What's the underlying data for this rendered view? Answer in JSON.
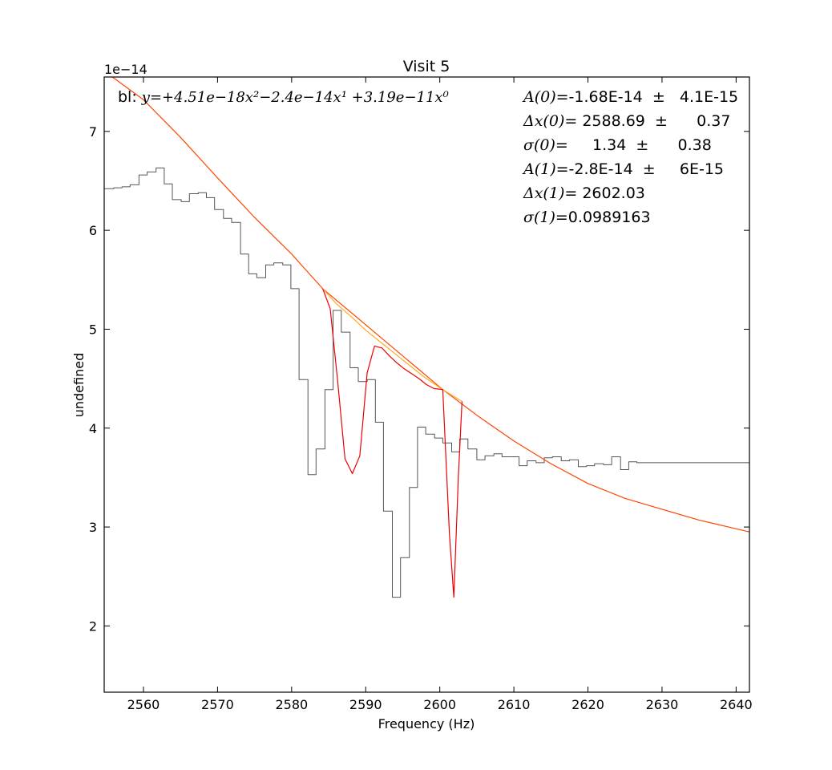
{
  "chart_data": {
    "type": "line",
    "title": "Visit 5",
    "xlabel": "Frequency (Hz)",
    "ylabel": "undefined",
    "y_offset_label": "1e−14",
    "xlim": [
      2554.7,
      2641.8
    ],
    "ylim": [
      1.33,
      7.55
    ],
    "x_ticks": [
      2560,
      2570,
      2580,
      2590,
      2600,
      2610,
      2620,
      2630,
      2640
    ],
    "x_tick_labels": [
      "2560",
      "2570",
      "2580",
      "2590",
      "2600",
      "2610",
      "2620",
      "2630",
      "2640"
    ],
    "y_ticks": [
      2,
      3,
      4,
      5,
      6,
      7
    ],
    "y_tick_labels": [
      "2",
      "3",
      "4",
      "5",
      "6",
      "7"
    ],
    "grid": false,
    "legend": "none",
    "baseline_text": {
      "prefix": "bl: ",
      "formula": "y=+4.51e−18x²−2.4e−14x¹ +3.19e−11x⁰"
    },
    "fit_params": [
      {
        "label": "A(0)",
        "text": "=-1.68E-14  ±   4.1E-15"
      },
      {
        "label": "Δx(0)",
        "text": "= 2588.69  ±      0.37"
      },
      {
        "label": "σ(0)",
        "text": "=     1.34  ±      0.38"
      },
      {
        "label": "A(1)",
        "text": "=-2.8E-14  ±     6E-15"
      },
      {
        "label": "Δx(1)",
        "text": "= 2602.03"
      },
      {
        "label": "σ(1)",
        "text": "=0.0989163"
      }
    ],
    "series": [
      {
        "kind": "step",
        "color": "#555555",
        "x": [
          2554.7,
          2556.0,
          2557.1,
          2558.2,
          2559.4,
          2560.5,
          2561.7,
          2562.8,
          2563.9,
          2565.1,
          2566.2,
          2567.4,
          2568.5,
          2569.6,
          2570.8,
          2571.9,
          2573.1,
          2574.2,
          2575.3,
          2576.5,
          2577.6,
          2578.8,
          2579.9,
          2581.0,
          2582.2,
          2583.3,
          2584.5,
          2585.6,
          2586.7,
          2587.9,
          2589.0,
          2590.2,
          2591.3,
          2592.4,
          2593.6,
          2594.7,
          2595.9,
          2597.0,
          2598.1,
          2599.3,
          2600.4,
          2601.6,
          2602.7,
          2603.8,
          2605.0,
          2606.1,
          2607.3,
          2608.4,
          2609.5,
          2610.7,
          2611.8,
          2613.0,
          2614.1,
          2615.2,
          2616.4,
          2617.5,
          2618.7,
          2619.8,
          2620.9,
          2622.1,
          2623.2,
          2624.4,
          2625.5,
          2626.6,
          2627.8,
          2628.9,
          2630.1,
          2631.2,
          2632.3,
          2633.5,
          2634.6,
          2635.8,
          2636.9,
          2638.0,
          2639.2,
          2640.3,
          2641.8
        ],
        "y": [
          6.42,
          6.43,
          6.44,
          6.46,
          6.56,
          6.59,
          6.63,
          6.47,
          6.31,
          6.29,
          6.37,
          6.38,
          6.33,
          6.21,
          6.12,
          6.08,
          5.76,
          5.56,
          5.52,
          5.65,
          5.67,
          5.65,
          5.41,
          4.49,
          3.53,
          3.79,
          4.39,
          5.19,
          4.97,
          4.61,
          4.47,
          4.49,
          4.06,
          3.16,
          2.29,
          2.69,
          3.4,
          4.01,
          3.94,
          3.9,
          3.85,
          3.76,
          3.89,
          3.79,
          3.68,
          3.72,
          3.74,
          3.71,
          3.71,
          3.62,
          3.67,
          3.65,
          3.7,
          3.71,
          3.67,
          3.68,
          3.61,
          3.62,
          3.64,
          3.63,
          3.71,
          3.58,
          3.66,
          3.65,
          3.65,
          3.65,
          3.65,
          3.65,
          3.65,
          3.65,
          3.65,
          3.65,
          3.65,
          3.65,
          3.65,
          3.65,
          3.65
        ]
      },
      {
        "kind": "baseline-outer",
        "color": "#ff4400",
        "x": [
          2555.8,
          2560,
          2565,
          2570,
          2575,
          2580,
          2584.2,
          2600.4,
          2605,
          2610,
          2615,
          2620,
          2625,
          2630,
          2635,
          2641.8
        ],
        "y": [
          7.55,
          7.32,
          6.94,
          6.53,
          6.13,
          5.76,
          5.41,
          4.39,
          4.13,
          3.87,
          3.64,
          3.44,
          3.29,
          3.18,
          3.07,
          2.95
        ]
      },
      {
        "kind": "baseline-inner",
        "color": "#ffaa22",
        "x": [
          2584.2,
          2586,
          2588,
          2590,
          2592,
          2594,
          2596,
          2598,
          2600.4,
          2603.0
        ],
        "y": [
          5.41,
          5.26,
          5.13,
          4.99,
          4.87,
          4.75,
          4.63,
          4.51,
          4.39,
          4.27
        ]
      },
      {
        "kind": "model",
        "color": "#ee0000",
        "x": [
          2584.2,
          2585.2,
          2586.2,
          2587.2,
          2588.2,
          2589.2,
          2590.2,
          2591.2,
          2592.2,
          2593.2,
          2594.2,
          2595.2,
          2596.2,
          2597.2,
          2598.2,
          2599.2,
          2600.4,
          2601.3,
          2601.9,
          2602.5,
          2603.0
        ],
        "y": [
          5.41,
          5.21,
          4.49,
          3.69,
          3.54,
          3.72,
          4.56,
          4.83,
          4.81,
          4.73,
          4.66,
          4.6,
          4.55,
          4.5,
          4.44,
          4.4,
          4.39,
          2.93,
          2.29,
          3.5,
          4.27
        ]
      }
    ]
  }
}
